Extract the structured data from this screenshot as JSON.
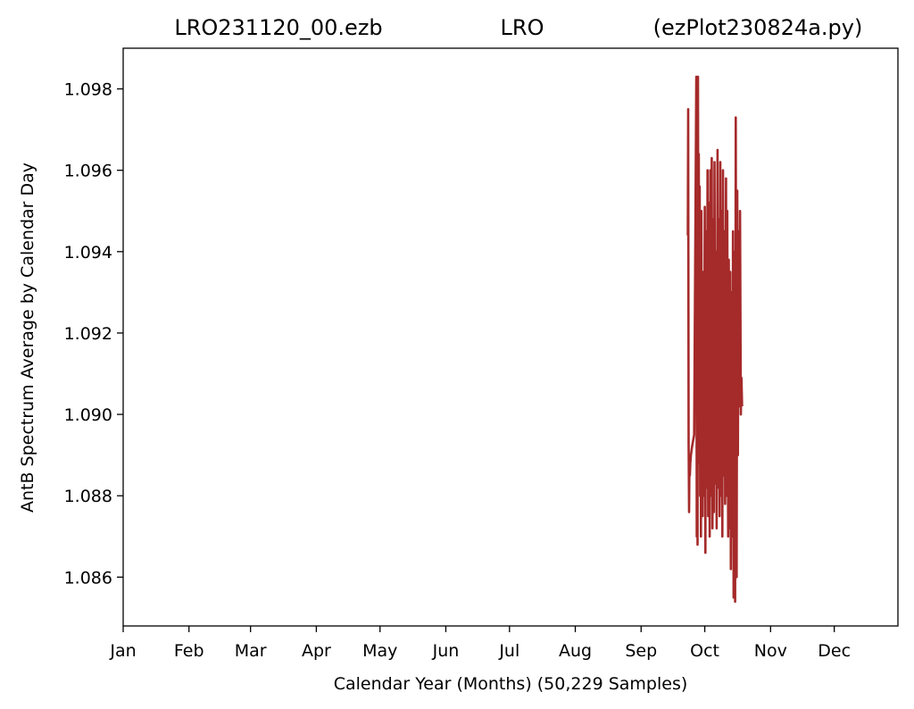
{
  "chart_data": {
    "type": "line",
    "title_left": "LRO231120_00.ezb",
    "title_center": "LRO",
    "title_right": "(ezPlot230824a.py)",
    "xlabel": "Calendar Year (Months) (50,229 Samples)",
    "ylabel": "AntB Spectrum Average by Calendar Day",
    "x_unit": "day of year",
    "xlim": [
      1,
      366
    ],
    "ylim": [
      1.0848,
      1.099
    ],
    "x_ticks": [
      {
        "label": "Jan",
        "day": 1
      },
      {
        "label": "Feb",
        "day": 32
      },
      {
        "label": "Mar",
        "day": 61
      },
      {
        "label": "Apr",
        "day": 92
      },
      {
        "label": "May",
        "day": 122
      },
      {
        "label": "Jun",
        "day": 153
      },
      {
        "label": "Jul",
        "day": 183
      },
      {
        "label": "Aug",
        "day": 214
      },
      {
        "label": "Sep",
        "day": 245
      },
      {
        "label": "Oct",
        "day": 275
      },
      {
        "label": "Nov",
        "day": 306
      },
      {
        "label": "Dec",
        "day": 336
      }
    ],
    "y_ticks": [
      1.086,
      1.088,
      1.09,
      1.092,
      1.094,
      1.096,
      1.098
    ],
    "y_tick_labels": [
      "1.086",
      "1.088",
      "1.090",
      "1.092",
      "1.094",
      "1.096",
      "1.098"
    ],
    "series": [
      {
        "color": "#a52a2a",
        "x": [
          267.0,
          267.2,
          267.4,
          267.6,
          267.8,
          268.0,
          268.2,
          268.5,
          269.0,
          270.0,
          271.0,
          271.2,
          271.4,
          271.6,
          271.8,
          272.0,
          272.2,
          272.4,
          272.6,
          272.8,
          273.0,
          273.2,
          273.4,
          273.6,
          273.8,
          274.0,
          274.3,
          274.6,
          275.0,
          275.3,
          275.6,
          276.0,
          276.3,
          276.6,
          277.0,
          277.3,
          277.6,
          278.0,
          278.3,
          278.6,
          279.0,
          279.3,
          279.6,
          280.0,
          280.3,
          280.6,
          281.0,
          281.3,
          281.6,
          282.0,
          282.3,
          282.6,
          283.0,
          283.3,
          283.6,
          284.0,
          284.3,
          284.6,
          285.0,
          285.3,
          285.6,
          286.0,
          286.3,
          286.6,
          287.0,
          287.3,
          287.6,
          288.0,
          288.3,
          288.6,
          289.0,
          289.3,
          289.6,
          290.0,
          290.3,
          290.6,
          291.0,
          291.3,
          291.6,
          292.0,
          292.3,
          292.6
        ],
        "y": [
          1.0944,
          1.0975,
          1.0893,
          1.0876,
          1.089,
          1.0885,
          1.0888,
          1.089,
          1.0892,
          1.0895,
          1.0983,
          1.087,
          1.0978,
          1.0868,
          1.0983,
          1.0895,
          1.0964,
          1.0888,
          1.0956,
          1.088,
          1.0945,
          1.087,
          1.095,
          1.09,
          1.092,
          1.0875,
          1.0935,
          1.088,
          1.0951,
          1.0866,
          1.0945,
          1.0882,
          1.096,
          1.0875,
          1.0952,
          1.087,
          1.096,
          1.088,
          1.0963,
          1.0872,
          1.0948,
          1.0876,
          1.0962,
          1.0883,
          1.094,
          1.0872,
          1.0965,
          1.0882,
          1.0948,
          1.0875,
          1.0962,
          1.088,
          1.095,
          1.087,
          1.096,
          1.0885,
          1.0945,
          1.0878,
          1.0958,
          1.088,
          1.095,
          1.087,
          1.0938,
          1.0872,
          1.0935,
          1.0862,
          1.093,
          1.087,
          1.0945,
          1.0855,
          1.094,
          1.0854,
          1.0973,
          1.086,
          1.0955,
          1.089,
          1.0945,
          1.0902,
          1.095,
          1.09,
          1.0909,
          1.0902
        ]
      }
    ]
  }
}
